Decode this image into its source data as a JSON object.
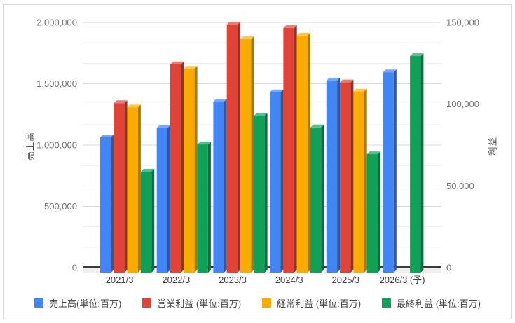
{
  "chart_data": {
    "type": "bar",
    "title": "",
    "subtitle": "",
    "legend_position": "bottom",
    "grid": {
      "major": true,
      "minor": true
    },
    "categories": [
      "2021/3",
      "2022/3",
      "2023/3",
      "2024/3",
      "2025/3",
      "2026/3 (予)"
    ],
    "series": [
      {
        "name": "売上高(単位:百万)",
        "axis": "left",
        "colors": {
          "face": "#4285F4",
          "top": "#7AA7F8",
          "side": "#2C58A4"
        },
        "values": [
          1063000,
          1139000,
          1354000,
          1430000,
          1526000,
          1593000
        ]
      },
      {
        "name": "営業利益 (単位:百万)",
        "axis": "right",
        "colors": {
          "face": "#E04438",
          "top": "#EA7D73",
          "side": "#98302A"
        },
        "values": [
          100600,
          124400,
          148700,
          146600,
          113300,
          null
        ]
      },
      {
        "name": "経常利益 (単位:百万)",
        "axis": "right",
        "colors": {
          "face": "#F9AB00",
          "top": "#FBC753",
          "side": "#A97807"
        },
        "values": [
          98000,
          121600,
          139700,
          141900,
          107700,
          null
        ]
      },
      {
        "name": "最終利益 (単位:百万)",
        "axis": "right",
        "colors": {
          "face": "#10A159",
          "top": "#58BD8B",
          "side": "#0B6E3D"
        },
        "values": [
          58700,
          75400,
          93000,
          85800,
          69400,
          129400
        ]
      }
    ],
    "axes": {
      "left": {
        "title": "売上高",
        "range": [
          0,
          2000000
        ],
        "ticks": [
          {
            "v": 0,
            "label": "0"
          },
          {
            "v": 500000,
            "label": "500,000"
          },
          {
            "v": 1000000,
            "label": "1,000,000"
          },
          {
            "v": 1500000,
            "label": "1,500,000"
          },
          {
            "v": 2000000,
            "label": "2,000,000"
          }
        ]
      },
      "right": {
        "title": "利益",
        "range": [
          0,
          150000
        ],
        "ticks": [
          {
            "v": 0,
            "label": "0"
          },
          {
            "v": 50000,
            "label": "50,000"
          },
          {
            "v": 100000,
            "label": "100,000"
          },
          {
            "v": 150000,
            "label": "150,000"
          }
        ]
      }
    },
    "style": {
      "grid_major_color": "#d9d9d9",
      "grid_minor_color": "#eeeeee",
      "baseline_color": "#3a3a3a",
      "floor_color": "#f0f0f0",
      "tick_label_color": "#757575",
      "x_label_color": "#424242",
      "axis_title_color": "#4d4d4d"
    }
  }
}
